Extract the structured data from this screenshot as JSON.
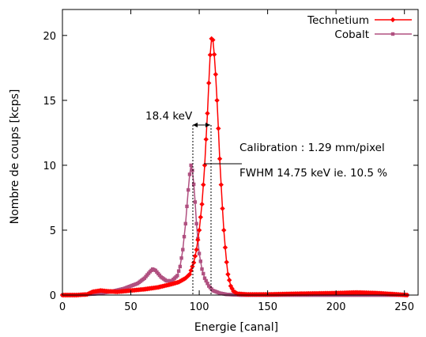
{
  "chart_data": {
    "type": "line",
    "xlabel": "Energie [canal]",
    "ylabel": "Nombre de coups [kcps]",
    "xlim": [
      0,
      260
    ],
    "ylim": [
      0,
      22
    ],
    "x_ticks": [
      "0",
      "50",
      "100",
      "150",
      "200",
      "250"
    ],
    "x_tick_values": [
      0,
      50,
      100,
      150,
      200,
      250
    ],
    "y_ticks": [
      "0",
      "5",
      "10",
      "15",
      "20"
    ],
    "y_tick_values": [
      0,
      5,
      10,
      15,
      20
    ],
    "grid": false,
    "legend_position": "top-right",
    "series": [
      {
        "name": "Technetium",
        "color": "#ff0000",
        "marker": "diamond",
        "points": [
          [
            0,
            0
          ],
          [
            10,
            0
          ],
          [
            18,
            0.05
          ],
          [
            22,
            0.25
          ],
          [
            28,
            0.35
          ],
          [
            32,
            0.3
          ],
          [
            40,
            0.25
          ],
          [
            50,
            0.35
          ],
          [
            60,
            0.45
          ],
          [
            70,
            0.6
          ],
          [
            80,
            0.85
          ],
          [
            85,
            1.0
          ],
          [
            90,
            1.3
          ],
          [
            93,
            1.6
          ],
          [
            96,
            2.5
          ],
          [
            98,
            3.5
          ],
          [
            100,
            5.0
          ],
          [
            102,
            7.0
          ],
          [
            104,
            10.0
          ],
          [
            106,
            14.0
          ],
          [
            107.5,
            17.5
          ],
          [
            108.5,
            19.5
          ],
          [
            109.5,
            20.0
          ],
          [
            110.5,
            19.3
          ],
          [
            112,
            17.0
          ],
          [
            113.5,
            14.0
          ],
          [
            115,
            10.5
          ],
          [
            116.5,
            7.5
          ],
          [
            118,
            5.0
          ],
          [
            119.5,
            3.0
          ],
          [
            121,
            1.6
          ],
          [
            123,
            0.7
          ],
          [
            125,
            0.3
          ],
          [
            128,
            0.1
          ],
          [
            135,
            0.05
          ],
          [
            150,
            0.05
          ],
          [
            170,
            0.1
          ],
          [
            200,
            0.15
          ],
          [
            215,
            0.2
          ],
          [
            230,
            0.15
          ],
          [
            245,
            0.05
          ],
          [
            252,
            0
          ]
        ]
      },
      {
        "name": "Cobalt",
        "color": "#b05080",
        "marker": "square",
        "points": [
          [
            0,
            0
          ],
          [
            10,
            0
          ],
          [
            18,
            0.05
          ],
          [
            25,
            0.1
          ],
          [
            35,
            0.25
          ],
          [
            45,
            0.5
          ],
          [
            55,
            0.9
          ],
          [
            60,
            1.3
          ],
          [
            64,
            1.8
          ],
          [
            66,
            2.0
          ],
          [
            68,
            1.9
          ],
          [
            72,
            1.4
          ],
          [
            76,
            1.1
          ],
          [
            80,
            1.1
          ],
          [
            84,
            1.5
          ],
          [
            86,
            2.2
          ],
          [
            88,
            3.5
          ],
          [
            90,
            5.5
          ],
          [
            91.5,
            7.5
          ],
          [
            93,
            9.3
          ],
          [
            94,
            10.0
          ],
          [
            95,
            9.6
          ],
          [
            96.5,
            8.0
          ],
          [
            98,
            5.5
          ],
          [
            100,
            3.2
          ],
          [
            102,
            2.0
          ],
          [
            104,
            1.3
          ],
          [
            107,
            0.7
          ],
          [
            110,
            0.35
          ],
          [
            115,
            0.15
          ],
          [
            120,
            0.05
          ],
          [
            130,
            0
          ],
          [
            150,
            0
          ],
          [
            200,
            0
          ],
          [
            252,
            0
          ]
        ]
      }
    ],
    "annotations": [
      {
        "text": "18.4 keV"
      },
      {
        "text": "Calibration : 1.29 mm/pixel"
      },
      {
        "text": "FWHM 14.75 keV ie. 10.5 %"
      }
    ]
  }
}
